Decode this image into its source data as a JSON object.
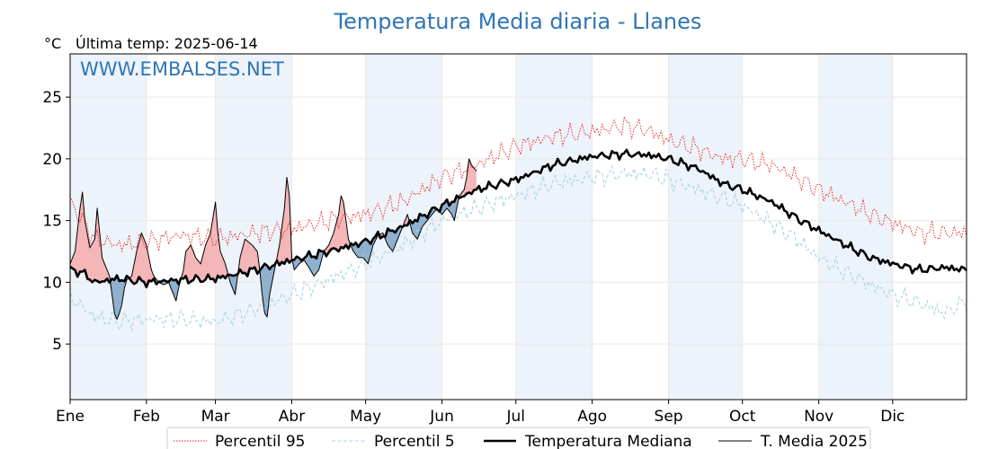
{
  "title": "Temperatura Media diaria - Llanes",
  "unit_label": "°C",
  "last_temp_label": "Última temp: 2025-06-14",
  "watermark": "WWW.EMBALSES.NET",
  "colors": {
    "title": "#2e75b6",
    "p95": "#e8201c",
    "p5": "#a8d4e4",
    "median": "#000000",
    "current": "#000000",
    "above_fill": "#f4b6b6",
    "below_fill": "#8fb1cf",
    "band": "#edf3fa",
    "grid": "#e9e9e9"
  },
  "legend": {
    "p95": "Percentil 95",
    "p5": "Percentil 5",
    "median": "Temperatura Mediana",
    "current": "T. Media 2025"
  },
  "chart_data": {
    "type": "line",
    "title": "Temperatura Media diaria - Llanes",
    "ylabel": "°C",
    "ylim": [
      0.5,
      28.5
    ],
    "xlim": [
      0,
      364
    ],
    "yticks": [
      5,
      10,
      15,
      20,
      25
    ],
    "grid": true,
    "legend_position": "bottom",
    "months": [
      {
        "label": "Ene",
        "day": 0
      },
      {
        "label": "Feb",
        "day": 31
      },
      {
        "label": "Mar",
        "day": 59
      },
      {
        "label": "Abr",
        "day": 90
      },
      {
        "label": "May",
        "day": 120
      },
      {
        "label": "Jun",
        "day": 151
      },
      {
        "label": "Jul",
        "day": 181
      },
      {
        "label": "Ago",
        "day": 212
      },
      {
        "label": "Sep",
        "day": 243
      },
      {
        "label": "Oct",
        "day": 273
      },
      {
        "label": "Nov",
        "day": 304
      },
      {
        "label": "Dic",
        "day": 334
      }
    ],
    "series": [
      {
        "name": "Percentil 95",
        "style": "dotted",
        "points": [
          [
            0,
            16.5
          ],
          [
            10,
            13.5
          ],
          [
            20,
            13.0
          ],
          [
            31,
            13.3
          ],
          [
            45,
            13.8
          ],
          [
            59,
            13.5
          ],
          [
            75,
            14.0
          ],
          [
            90,
            14.3
          ],
          [
            105,
            15.0
          ],
          [
            120,
            15.5
          ],
          [
            135,
            16.5
          ],
          [
            151,
            18.5
          ],
          [
            165,
            19.5
          ],
          [
            181,
            21.0
          ],
          [
            196,
            21.8
          ],
          [
            212,
            22.2
          ],
          [
            225,
            22.7
          ],
          [
            235,
            22.3
          ],
          [
            243,
            21.5
          ],
          [
            255,
            20.8
          ],
          [
            265,
            20.0
          ],
          [
            273,
            20.0
          ],
          [
            285,
            19.5
          ],
          [
            295,
            18.5
          ],
          [
            304,
            17.5
          ],
          [
            315,
            16.5
          ],
          [
            325,
            15.5
          ],
          [
            334,
            14.8
          ],
          [
            345,
            14.0
          ],
          [
            355,
            14.0
          ],
          [
            364,
            14.0
          ]
        ]
      },
      {
        "name": "Percentil 5",
        "style": "dashed",
        "points": [
          [
            0,
            8.8
          ],
          [
            10,
            7.2
          ],
          [
            20,
            6.8
          ],
          [
            31,
            7.0
          ],
          [
            45,
            7.0
          ],
          [
            59,
            6.8
          ],
          [
            75,
            7.8
          ],
          [
            90,
            9.0
          ],
          [
            105,
            10.2
          ],
          [
            120,
            11.5
          ],
          [
            135,
            13.0
          ],
          [
            151,
            15.0
          ],
          [
            165,
            16.0
          ],
          [
            181,
            17.0
          ],
          [
            196,
            18.0
          ],
          [
            212,
            18.5
          ],
          [
            225,
            18.8
          ],
          [
            235,
            18.8
          ],
          [
            243,
            18.3
          ],
          [
            255,
            17.5
          ],
          [
            265,
            16.8
          ],
          [
            273,
            16.2
          ],
          [
            285,
            14.8
          ],
          [
            295,
            13.5
          ],
          [
            304,
            12.0
          ],
          [
            315,
            10.8
          ],
          [
            325,
            9.8
          ],
          [
            334,
            9.0
          ],
          [
            345,
            8.3
          ],
          [
            355,
            7.5
          ],
          [
            364,
            8.5
          ]
        ]
      },
      {
        "name": "Temperatura Mediana",
        "style": "bold",
        "points": [
          [
            0,
            11.0
          ],
          [
            5,
            10.8
          ],
          [
            10,
            10.0
          ],
          [
            20,
            10.3
          ],
          [
            31,
            10.0
          ],
          [
            45,
            10.2
          ],
          [
            59,
            10.3
          ],
          [
            75,
            11.0
          ],
          [
            90,
            11.8
          ],
          [
            105,
            12.5
          ],
          [
            120,
            13.3
          ],
          [
            135,
            14.5
          ],
          [
            151,
            16.2
          ],
          [
            165,
            17.5
          ],
          [
            181,
            18.3
          ],
          [
            196,
            19.5
          ],
          [
            212,
            20.2
          ],
          [
            225,
            20.4
          ],
          [
            235,
            20.3
          ],
          [
            243,
            20.0
          ],
          [
            255,
            19.2
          ],
          [
            265,
            18.0
          ],
          [
            273,
            17.5
          ],
          [
            285,
            16.5
          ],
          [
            295,
            15.2
          ],
          [
            304,
            14.2
          ],
          [
            315,
            13.0
          ],
          [
            325,
            12.0
          ],
          [
            334,
            11.5
          ],
          [
            345,
            11.0
          ],
          [
            355,
            11.2
          ],
          [
            364,
            11.0
          ]
        ]
      },
      {
        "name": "T. Media 2025",
        "style": "thin",
        "points": [
          [
            0,
            11.5
          ],
          [
            2,
            12.5
          ],
          [
            4,
            16.0
          ],
          [
            5,
            17.3
          ],
          [
            6,
            15.0
          ],
          [
            8,
            12.8
          ],
          [
            10,
            13.5
          ],
          [
            11,
            16.0
          ],
          [
            13,
            12.0
          ],
          [
            15,
            11.0
          ],
          [
            16,
            10.5
          ],
          [
            17,
            9.0
          ],
          [
            18,
            7.5
          ],
          [
            19,
            7.0
          ],
          [
            20,
            7.5
          ],
          [
            21,
            8.2
          ],
          [
            22,
            9.5
          ],
          [
            23,
            10.2
          ],
          [
            25,
            10.5
          ],
          [
            27,
            12.5
          ],
          [
            29,
            14.0
          ],
          [
            31,
            13.0
          ],
          [
            33,
            11.0
          ],
          [
            34,
            10.5
          ],
          [
            36,
            10.0
          ],
          [
            38,
            9.8
          ],
          [
            40,
            10.0
          ],
          [
            42,
            9.0
          ],
          [
            43,
            8.5
          ],
          [
            44,
            9.5
          ],
          [
            46,
            11.0
          ],
          [
            47,
            12.5
          ],
          [
            49,
            13.0
          ],
          [
            51,
            12.0
          ],
          [
            53,
            11.5
          ],
          [
            55,
            13.0
          ],
          [
            57,
            14.0
          ],
          [
            59,
            16.5
          ],
          [
            60,
            14.0
          ],
          [
            61,
            12.5
          ],
          [
            63,
            11.5
          ],
          [
            65,
            10.0
          ],
          [
            67,
            9.0
          ],
          [
            69,
            12.0
          ],
          [
            71,
            13.5
          ],
          [
            74,
            13.0
          ],
          [
            76,
            12.5
          ],
          [
            77,
            11.0
          ],
          [
            78,
            9.0
          ],
          [
            79,
            7.5
          ],
          [
            80,
            7.2
          ],
          [
            81,
            9.0
          ],
          [
            83,
            11.0
          ],
          [
            85,
            13.0
          ],
          [
            87,
            16.0
          ],
          [
            88,
            18.5
          ],
          [
            89,
            17.0
          ],
          [
            90,
            12.0
          ],
          [
            91,
            11.0
          ],
          [
            93,
            11.5
          ],
          [
            95,
            11.8
          ],
          [
            97,
            11.2
          ],
          [
            99,
            10.5
          ],
          [
            101,
            11.0
          ],
          [
            103,
            12.5
          ],
          [
            105,
            13.0
          ],
          [
            107,
            14.0
          ],
          [
            109,
            15.5
          ],
          [
            110,
            17.0
          ],
          [
            111,
            16.5
          ],
          [
            113,
            13.5
          ],
          [
            115,
            12.5
          ],
          [
            117,
            12.0
          ],
          [
            119,
            12.0
          ],
          [
            121,
            11.5
          ],
          [
            123,
            13.0
          ],
          [
            125,
            13.8
          ],
          [
            127,
            14.0
          ],
          [
            129,
            13.0
          ],
          [
            131,
            12.5
          ],
          [
            133,
            13.5
          ],
          [
            135,
            14.5
          ],
          [
            137,
            15.5
          ],
          [
            139,
            14.0
          ],
          [
            141,
            13.5
          ],
          [
            143,
            14.5
          ],
          [
            145,
            15.0
          ],
          [
            147,
            15.5
          ],
          [
            149,
            16.0
          ],
          [
            151,
            15.5
          ],
          [
            153,
            16.0
          ],
          [
            155,
            15.5
          ],
          [
            156,
            15.0
          ],
          [
            158,
            17.0
          ],
          [
            160,
            17.5
          ],
          [
            161,
            18.5
          ],
          [
            162,
            20.0
          ],
          [
            163,
            19.5
          ],
          [
            165,
            19.0
          ]
        ]
      }
    ]
  }
}
